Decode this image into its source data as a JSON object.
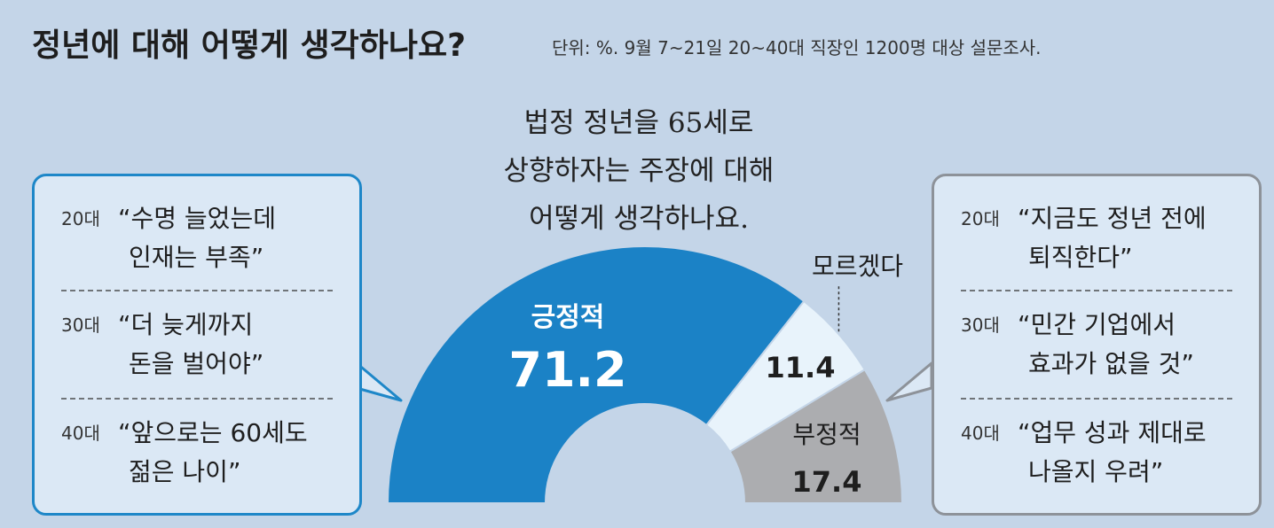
{
  "header": {
    "title": "정년에 대해 어떻게 생각하나요?",
    "subtitle": "단위: %. 9월 7~21일 20~40대 직장인 1200명 대상 설문조사."
  },
  "question": {
    "lines": [
      "법정 정년을 65세로",
      "상향하자는 주장에 대해",
      "어떻게 생각하나요."
    ]
  },
  "chart_data": {
    "type": "pie",
    "variant": "half-donut",
    "slices": [
      {
        "label": "긍정적",
        "value": 71.2,
        "value_text": "71.2",
        "color": "#1b82c6"
      },
      {
        "label": "모르겠다",
        "value": 11.4,
        "value_text": "11.4",
        "color": "#e8f3fb"
      },
      {
        "label": "부정적",
        "value": 17.4,
        "value_text": "17.4",
        "color": "#acadb0"
      }
    ]
  },
  "left_panel": {
    "accent": "#1e87c8",
    "entries": [
      {
        "age": "20대",
        "quote_line1": "“수명 늘었는데",
        "quote_line2": "인재는 부족”"
      },
      {
        "age": "30대",
        "quote_line1": "“더 늦게까지",
        "quote_line2": "돈을 벌어야”"
      },
      {
        "age": "40대",
        "quote_line1": "“앞으로는 60세도",
        "quote_line2": "젊은 나이”"
      }
    ]
  },
  "right_panel": {
    "accent": "#8d9299",
    "entries": [
      {
        "age": "20대",
        "quote_line1": "“지금도 정년 전에",
        "quote_line2": "퇴직한다”"
      },
      {
        "age": "30대",
        "quote_line1": "“민간 기업에서",
        "quote_line2": "효과가 없을 것”"
      },
      {
        "age": "40대",
        "quote_line1": "“업무 성과 제대로",
        "quote_line2": "나올지 우려”"
      }
    ]
  }
}
